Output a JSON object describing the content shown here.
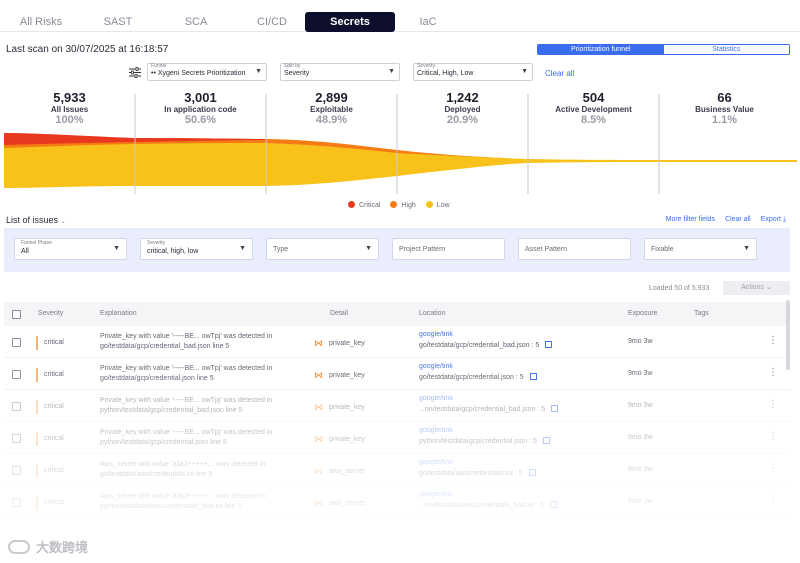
{
  "tabs": [
    {
      "label": "All Risks",
      "active": false
    },
    {
      "label": "SAST",
      "active": false
    },
    {
      "label": "SCA",
      "active": false
    },
    {
      "label": "CI/CD",
      "active": false
    },
    {
      "label": "Secrets",
      "active": true
    },
    {
      "label": "IaC",
      "active": false
    }
  ],
  "last_scan": "Last scan on 30/07/2025 at 16:18:57",
  "view_toggle": {
    "funnel": "Prioritization funnel",
    "statistics": "Statistics"
  },
  "selectors": {
    "funnel": {
      "label": "Funnel",
      "value": "•• Xygeni Secrets Prioritization"
    },
    "split_by": {
      "label": "Split by",
      "value": "Severity"
    },
    "severity": {
      "label": "Severity",
      "value": "Critical, High, Low"
    }
  },
  "clear_all_top": "Clear all",
  "funnel_stages": [
    {
      "count": "5,933",
      "label": "All Issues",
      "pct": "100%"
    },
    {
      "count": "3,001",
      "label": "In application code",
      "pct": "50.6%"
    },
    {
      "count": "2,899",
      "label": "Exploitable",
      "pct": "48.9%"
    },
    {
      "count": "1,242",
      "label": "Deployed",
      "pct": "20.9%"
    },
    {
      "count": "504",
      "label": "Active Development",
      "pct": "8.5%"
    },
    {
      "count": "66",
      "label": "Business Value",
      "pct": "1.1%"
    }
  ],
  "legend": [
    {
      "label": "Critical",
      "color": "#e8391e"
    },
    {
      "label": "High",
      "color": "#f57c14"
    },
    {
      "label": "Low",
      "color": "#f8c21b"
    }
  ],
  "list_title": "List of issues",
  "list_actions": {
    "more_filters": "More filter fields",
    "clear_all": "Clear all",
    "export": "Export"
  },
  "filters": {
    "funnel_phase": {
      "label": "Funnel Phase",
      "value": "All"
    },
    "severity": {
      "label": "Severity",
      "value": "critical, high, low"
    },
    "type": {
      "placeholder": "Type"
    },
    "project_pattern": {
      "placeholder": "Project Pattern"
    },
    "asset_pattern": {
      "placeholder": "Asset Pattern"
    },
    "fixable": {
      "placeholder": "Fixable"
    }
  },
  "loaded": "Loaded 50 of 5.933",
  "actions_label": "Actions",
  "table": {
    "headers": {
      "severity": "Severity",
      "explanation": "Explanation",
      "detail": "Detail",
      "location": "Location",
      "exposure": "Exposure",
      "tags": "Tags"
    },
    "rows": [
      {
        "severity": "critical",
        "explanation": "Private_key with value '-----BE... owTpj' was detected in go/testdata/gcp/credential_bad.json line 5",
        "detail": "private_key",
        "repo": "google/tink",
        "path": "go/testdata/gcp/credential_bad.json : 5",
        "exposure": "9mo 3w"
      },
      {
        "severity": "critical",
        "explanation": "Private_key with value '-----BE... owTpj' was detected in go/testdata/gcp/credential.json line 5",
        "detail": "private_key",
        "repo": "google/tink",
        "path": "go/testdata/gcp/credential.json : 5",
        "exposure": "9mo 3w"
      },
      {
        "severity": "critical",
        "explanation": "Private_key with value '-----BE... owTpj' was detected in python/testdata/gcp/credential_bad.json line 5",
        "detail": "private_key",
        "repo": "google/tink",
        "path": "...on/testdata/gcp/credential_bad.json : 5",
        "exposure": "9mo 3w"
      },
      {
        "severity": "critical",
        "explanation": "Private_key with value '-----BE... owTpj' was detected in python/testdata/gcp/credential.json line 5",
        "detail": "private_key",
        "repo": "google/tink",
        "path": "python/testdata/gcp/credential.json : 5",
        "exposure": "9mo 3w"
      },
      {
        "severity": "critical",
        "explanation": "Aws_secret with value 'aJaJ+++++...' was detected in go/testdata/aws/credentials.ini line 5",
        "detail": "aws_secret",
        "repo": "google/tink",
        "path": "go/testdata/aws/credentials.ini : 5",
        "exposure": "9mo 3w"
      },
      {
        "severity": "critical",
        "explanation": "Aws_secret with value 'aJaJ+++++...' was detected in python/testdata/aws/credentials_bad.ini line 5",
        "detail": "aws_secret",
        "repo": "google/tink",
        "path": "...on/testdata/aws/credentials_bad.ini : 5",
        "exposure": "9mo 3w"
      }
    ]
  },
  "watermark": "大数跨境"
}
